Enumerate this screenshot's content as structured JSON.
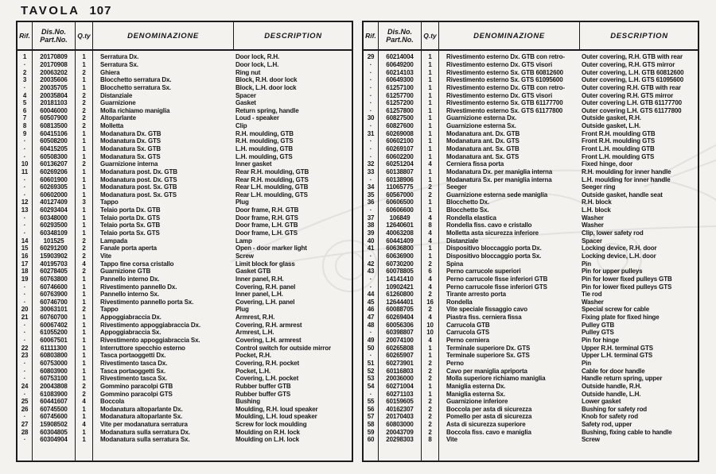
{
  "page": {
    "title_label": "TAVOLA",
    "title_number": "107"
  },
  "table_headers": {
    "rif": "Rif.",
    "dis_no_line1": "Dis.No.",
    "dis_no_line2": "Part.No.",
    "qty": "Q.ty",
    "denominazione": "DENOMINAZIONE",
    "description": "DESCRIPTION"
  },
  "left_table": {
    "rows": [
      [
        "1",
        "20170809",
        "1",
        "Serratura Dx.",
        "Door lock, R.H."
      ],
      [
        "·",
        "20170908",
        "1",
        "Serratura Sx.",
        "Door lock, L.H."
      ],
      [
        "2",
        "20063202",
        "2",
        "Ghiera",
        "Ring nut"
      ],
      [
        "3",
        "20035606",
        "1",
        "Blocchetto serratura Dx.",
        "Block, R.H. door lock"
      ],
      [
        "·",
        "20035705",
        "1",
        "Blocchetto serratura Sx.",
        "Block, L.H. door lock"
      ],
      [
        "4",
        "20035804",
        "2",
        "Distanziale",
        "Spacer"
      ],
      [
        "5",
        "20181103",
        "2",
        "Guarnizione",
        "Gasket"
      ],
      [
        "6",
        "60046000",
        "2",
        "Molla richiamo maniglia",
        "Return spring, handle"
      ],
      [
        "7",
        "60507900",
        "2",
        "Altoparlante",
        "Loud - speaker"
      ],
      [
        "8",
        "60813500",
        "2",
        "Molletta",
        "Clip"
      ],
      [
        "9",
        "60415106",
        "1",
        "Modanatura Dx. GTB",
        "R.H. moulding, GTB"
      ],
      [
        "·",
        "60508200",
        "1",
        "Modanatura Dx. GTS",
        "R.H. moulding, GTS"
      ],
      [
        "·",
        "60415205",
        "1",
        "Modanatura Sx. GTB",
        "L.H. moulding, GTB"
      ],
      [
        "·",
        "60508300",
        "1",
        "Modanatura Sx. GTS",
        "L.H. moulding, GTS"
      ],
      [
        "10",
        "60136207",
        "2",
        "Guarnizione interna",
        "Inner gasket"
      ],
      [
        "11",
        "60269206",
        "1",
        "Modanatura post. Dx. GTB",
        "Rear R.H. moulding, GTB"
      ],
      [
        "·",
        "60601900",
        "1",
        "Modanatura post. Dx. GTS",
        "Rear R.H. moulding, GTS"
      ],
      [
        "·",
        "60269305",
        "1",
        "Modanatura post. Sx. GTB",
        "Rear L.H. moulding, GTB"
      ],
      [
        "·",
        "60602000",
        "1",
        "Modanatura post. Sx. GTS",
        "Rear L.H. moulding, GTS"
      ],
      [
        "12",
        "40127409",
        "3",
        "Tappo",
        "Plug"
      ],
      [
        "13",
        "60293404",
        "1",
        "Telaio porta Dx. GTB",
        "Door frame, R.H. GTB"
      ],
      [
        "·",
        "60348000",
        "1",
        "Telaio porta Dx. GTS",
        "Door frame, R.H. GTS"
      ],
      [
        "·",
        "60293500",
        "1",
        "Telaio porta Sx. GTB",
        "Door frame, L.H. GTB"
      ],
      [
        "·",
        "60348109",
        "1",
        "Telaio porta Sx. GTS",
        "Door frame, L.H. GTS"
      ],
      [
        "14",
        "101525",
        "2",
        "Lampada",
        "Lamp"
      ],
      [
        "15",
        "60291200",
        "2",
        "Fanale porta aperta",
        "Open - door marker light"
      ],
      [
        "16",
        "15903902",
        "2",
        "Vite",
        "Screw"
      ],
      [
        "17",
        "40195703",
        "4",
        "Tappo fine corsa cristallo",
        "Limit block for glass"
      ],
      [
        "18",
        "60278405",
        "2",
        "Guarnizione GTB",
        "Gasket GTB"
      ],
      [
        "19",
        "60763800",
        "1",
        "Pannello interno Dx.",
        "Inner panel, R.H."
      ],
      [
        "·",
        "60746600",
        "1",
        "Rivestimento pannello Dx.",
        "Covering, R.H. panel"
      ],
      [
        "·",
        "60763900",
        "1",
        "Pannello interno Sx.",
        "Inner panel, L.H."
      ],
      [
        "·",
        "60746700",
        "1",
        "Rivestimento pannello porta Sx.",
        "Covering, L.H. panel"
      ],
      [
        "20",
        "30063101",
        "2",
        "Tappo",
        "Plug"
      ],
      [
        "21",
        "60760700",
        "1",
        "Appoggiabraccia Dx.",
        "Armrest, R.H."
      ],
      [
        "·",
        "60067402",
        "1",
        "Rivestimento appoggiabraccia Dx.",
        "Covering, R.H. armrest"
      ],
      [
        "·",
        "61055200",
        "1",
        "Appoggiabraccia Sx.",
        "Armrest, L.H."
      ],
      [
        "·",
        "60067501",
        "1",
        "Rivestimento appoggiabraccia Sx.",
        "Covering, L.H. armrest"
      ],
      [
        "22",
        "61111300",
        "1",
        "Interruttore specchio esterno",
        "Control switch for outside mirror"
      ],
      [
        "23",
        "60803800",
        "1",
        "Tasca portaoggetti Dx.",
        "Pocket, R.H."
      ],
      [
        "·",
        "60753000",
        "1",
        "Rivestimento tasca Dx.",
        "Covering, R.H. pocket"
      ],
      [
        "·",
        "60803900",
        "1",
        "Tasca portaoggetti Sx.",
        "Pocket, L.H."
      ],
      [
        "·",
        "60753100",
        "1",
        "Rivestimento tasca Sx.",
        "Covering, L.H. pocket"
      ],
      [
        "24",
        "20043808",
        "2",
        "Gommino paracolpi GTB",
        "Rubber buffer GTB"
      ],
      [
        "·",
        "61083900",
        "2",
        "Gommino paracolpi GTS",
        "Rubber buffer GTS"
      ],
      [
        "25",
        "60441607",
        "4",
        "Boccola",
        "Bushing"
      ],
      [
        "26",
        "60745500",
        "1",
        "Modanatura altoparlante Dx.",
        "Moulding, R.H. loud speaker"
      ],
      [
        "·",
        "60745600",
        "1",
        "Modanatura altoparlante Sx.",
        "Moulding, L.H. loud speaker"
      ],
      [
        "27",
        "15908502",
        "4",
        "Vite per modanatura serratura",
        "Screw for lock moulding"
      ],
      [
        "28",
        "60304805",
        "1",
        "Modanatura sulla serratura Dx.",
        "Moulding on R.H. lock"
      ],
      [
        "·",
        "60304904",
        "1",
        "Modanatura sulla serratura Sx.",
        "Moulding on L.H. lock"
      ]
    ]
  },
  "right_table": {
    "rows": [
      [
        "29",
        "60214004",
        "1",
        "Rivestimento esterno Dx. GTB con retro-",
        "Outer covering, R.H. GTB with rear"
      ],
      [
        "·",
        "60649200",
        "1",
        "Rivestimento esterno Dx. GTS visori",
        "Outer covering, R.H. GTS mirror"
      ],
      [
        "·",
        "60214103",
        "1",
        "Rivestimento esterno Sx. GTB 60812600",
        "Outer covering, L.H. GTB 60812600"
      ],
      [
        "·",
        "60649300",
        "1",
        "Rivestimento esterno Sx. GTS 61095600",
        "Outer covering, L.H. GTS 61095600"
      ],
      [
        "·",
        "61257100",
        "1",
        "Rivestimento esterno Dx. GTB con retro-",
        "Outer covering R.H. GTB with rear"
      ],
      [
        "·",
        "61257700",
        "1",
        "Rivestimento esterno Dx. GTS visori",
        "Outer covering R.H. GTS mirror"
      ],
      [
        "·",
        "61257200",
        "1",
        "Rivestimento esterno Sx. GTB 61177700",
        "Outer covering L.H. GTB 61177700"
      ],
      [
        "·",
        "61257800",
        "1",
        "Rivestimento esterno Sx. GTS 61177800",
        "Outer covering L.H. GTS 61177800"
      ],
      [
        "30",
        "60827500",
        "1",
        "Guarnizione esterna Dx.",
        "Outside gasket, R.H."
      ],
      [
        "·",
        "60827600",
        "1",
        "Guarnizione esterna Sx.",
        "Outside gasket, L.H."
      ],
      [
        "31",
        "60269008",
        "1",
        "Modanatura ant. Dx. GTB",
        "Front R.H. moulding GTB"
      ],
      [
        "·",
        "60602100",
        "1",
        "Modanatura ant. Dx. GTS",
        "Front R.H. moulding GTS"
      ],
      [
        "·",
        "60269107",
        "1",
        "Modanatura ant. Sx. GTB",
        "Front L.H. moulding GTB"
      ],
      [
        "·",
        "60602200",
        "1",
        "Modanatura ant. Sx. GTS",
        "Front L.H. moulding GTS"
      ],
      [
        "32",
        "60251204",
        "4",
        "Cerniera fissa porta",
        "Fixed hinge, door"
      ],
      [
        "33",
        "60138807",
        "1",
        "Modanatura Dx. per maniglia interna",
        "R.H. moulding for inner handle"
      ],
      [
        "·",
        "60138906",
        "1",
        "Modanatura Sx. per maniglia interna",
        "L.H. moulding for inner handle"
      ],
      [
        "34",
        "11065775",
        "2",
        "Seeger",
        "Seeger ring"
      ],
      [
        "35",
        "60567000",
        "2",
        "Guarnizione esterna sede maniglia",
        "Outside gasket, handle seat"
      ],
      [
        "36",
        "60606500",
        "1",
        "Blocchetto Dx.",
        "R.H. block"
      ],
      [
        "·",
        "60606600",
        "1",
        "Blocchetto Sx.",
        "L.H. block"
      ],
      [
        "37",
        "106849",
        "4",
        "Rondella elastica",
        "Washer"
      ],
      [
        "38",
        "12640601",
        "8",
        "Rondella fiss. cavo e cristallo",
        "Washer"
      ],
      [
        "39",
        "40063208",
        "4",
        "Molletta asta sicurezza inferiore",
        "Clip, lower safety rod"
      ],
      [
        "40",
        "60441409",
        "4",
        "Distanziale",
        "Spacer"
      ],
      [
        "41",
        "60636800",
        "1",
        "Dispositivo bloccaggio porta Dx.",
        "Locking device, R.H. door"
      ],
      [
        "·",
        "60636900",
        "1",
        "Dispositivo bloccaggio porta Sx.",
        "Locking device, L.H. door"
      ],
      [
        "42",
        "60730200",
        "2",
        "Spina",
        "Pin"
      ],
      [
        "43",
        "60078805",
        "6",
        "Perno carrucole superiori",
        "Pin for upper pulleys"
      ],
      [
        "·",
        "14141410",
        "4",
        "Perno carrucole fisse inferiori GTB",
        "Pin for lower fixed pulleys GTB"
      ],
      [
        "·",
        "10902421",
        "4",
        "Perno carrucole fisse inferiori GTS",
        "Pin for lower fixed pulleys GTS"
      ],
      [
        "44",
        "61260800",
        "2",
        "Tirante arresto porta",
        "Tie rod"
      ],
      [
        "45",
        "12644401",
        "16",
        "Rondella",
        "Washer"
      ],
      [
        "46",
        "60088705",
        "2",
        "Vite speciale fissaggio cavo",
        "Special screw for cable"
      ],
      [
        "47",
        "60269404",
        "4",
        "Piastra fiss. cerniera fissa",
        "Fixing plate for fixed hinge"
      ],
      [
        "48",
        "60056306",
        "10",
        "Carrucola GTB",
        "Pulley GTB"
      ],
      [
        "·",
        "60398807",
        "10",
        "Carrucola GTS",
        "Pulley GTS"
      ],
      [
        "49",
        "20074100",
        "4",
        "Perno cerniera",
        "Pin for hinge"
      ],
      [
        "50",
        "60265808",
        "1",
        "Terminale superiore Dx. GTS",
        "Upper R.H. terminal GTS"
      ],
      [
        "·",
        "60265907",
        "1",
        "Terminale superiore Sx. GTS",
        "Upper L.H. terminal GTS"
      ],
      [
        "51",
        "60273901",
        "2",
        "Perno",
        "Pin"
      ],
      [
        "52",
        "60116803",
        "2",
        "Cavo per maniglia apriporta",
        "Cable for door handle"
      ],
      [
        "53",
        "20036000",
        "2",
        "Molla superiore richiamo maniglia",
        "Handle return spring, upper"
      ],
      [
        "54",
        "60271004",
        "1",
        "Maniglia esterna Dx.",
        "Outside handle, R.H."
      ],
      [
        "·",
        "60271103",
        "1",
        "Maniglia esterna Sx.",
        "Outside handle, L.H."
      ],
      [
        "55",
        "60159605",
        "2",
        "Guarnizione inferiore",
        "Lower gasket"
      ],
      [
        "56",
        "40162307",
        "2",
        "Boccola per asta di sicurezza",
        "Bushing for safety rod"
      ],
      [
        "57",
        "20170403",
        "2",
        "Pomello per asta di sicurezza",
        "Knob for safety rod"
      ],
      [
        "58",
        "60803000",
        "2",
        "Asta di sicurezza superiore",
        "Safety rod, upper"
      ],
      [
        "59",
        "20043709",
        "2",
        "Boccola fiss. cavo e maniglia",
        "Bushing, fixing cable to handle"
      ],
      [
        "60",
        "20298303",
        "8",
        "Vite",
        "Screw"
      ]
    ]
  }
}
